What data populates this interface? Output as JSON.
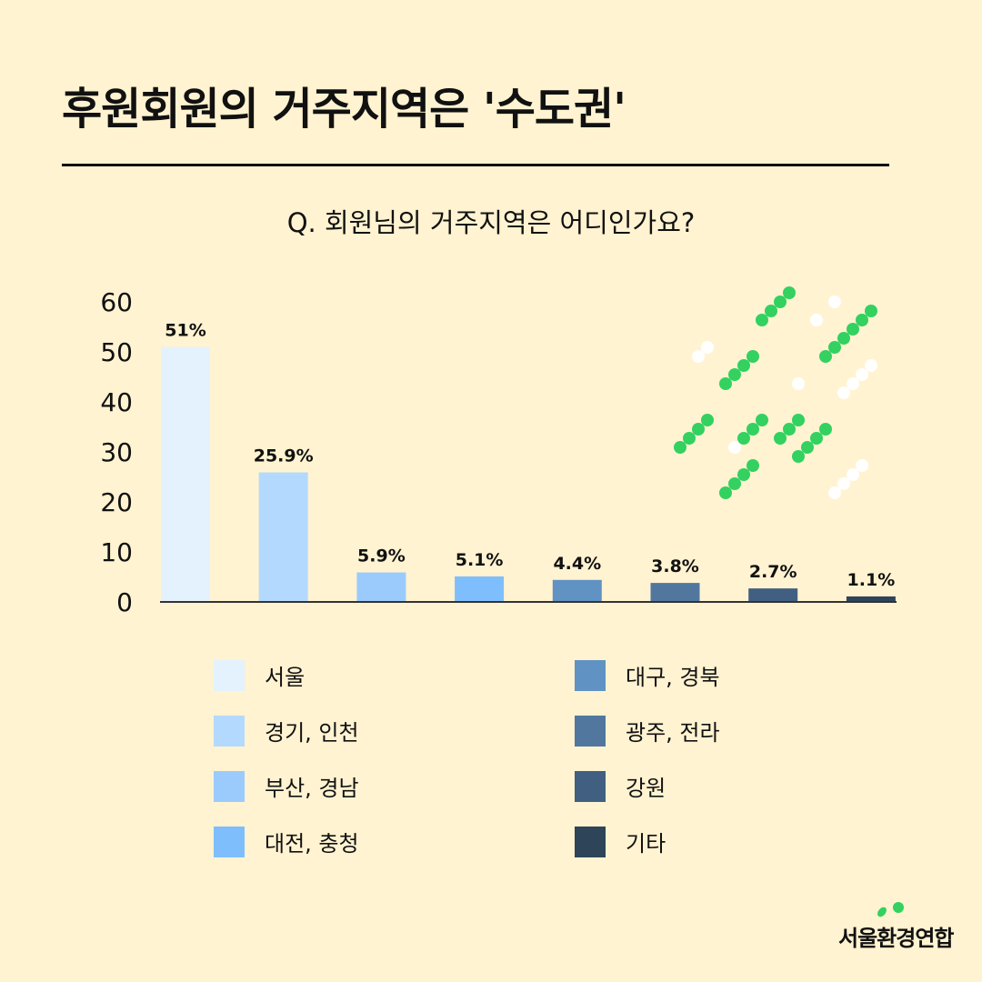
{
  "title": "후원회원의 거주지역은 '수도권'",
  "question": "Q. 회원님의 거주지역은 어디인가요?",
  "logo_text": "서울환경연합",
  "chart_data": {
    "type": "bar",
    "categories": [
      "서울",
      "경기, 인천",
      "부산, 경남",
      "대전, 충청",
      "대구, 경북",
      "광주, 전라",
      "강원",
      "기타"
    ],
    "values": [
      51,
      25.9,
      5.9,
      5.1,
      4.4,
      3.8,
      2.7,
      1.1
    ],
    "data_labels": [
      "51%",
      "25.9%",
      "5.9%",
      "5.1%",
      "4.4%",
      "3.8%",
      "2.7%",
      "1.1%"
    ],
    "colors": [
      "#e3f2fd",
      "#b3dafe",
      "#9bcbfd",
      "#7fbefc",
      "#6192c4",
      "#52779f",
      "#415f80",
      "#2e4459"
    ],
    "yticks": [
      "0",
      "10",
      "20",
      "30",
      "40",
      "50",
      "60"
    ],
    "ylim": [
      0,
      60
    ],
    "grid": false,
    "legend_placement": "bottom"
  }
}
